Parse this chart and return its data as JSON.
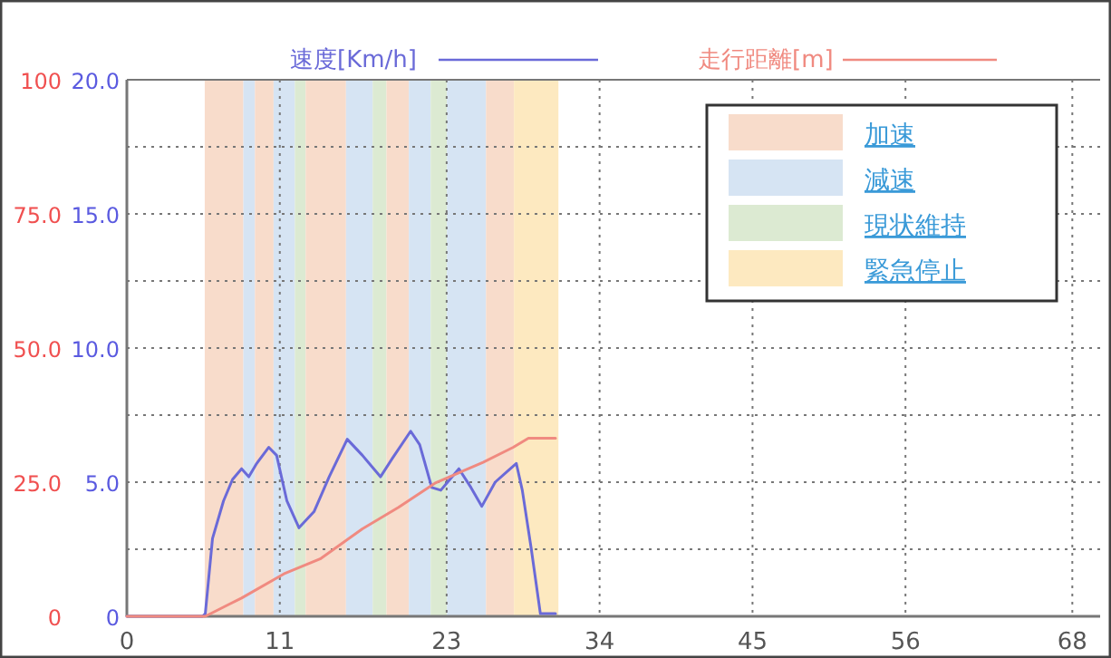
{
  "chart_data": {
    "type": "line",
    "legend": "top",
    "grid": true,
    "line_style": "solid",
    "marker": "none",
    "xlim": [
      0,
      70
    ],
    "xticks": [
      0,
      11,
      23,
      34,
      45,
      56,
      68
    ],
    "ylim": [
      0,
      20
    ],
    "yticks": [
      {
        "value": 0,
        "label": "0"
      },
      {
        "value": 2.5,
        "label": null
      },
      {
        "value": 5,
        "label": "5.0"
      },
      {
        "value": 7.5,
        "label": null
      },
      {
        "value": 10,
        "label": "10.0"
      },
      {
        "value": 12.5,
        "label": null
      },
      {
        "value": 15,
        "label": "15.0"
      },
      {
        "value": 17.5,
        "label": null
      },
      {
        "value": 20,
        "label": "20.0"
      }
    ],
    "y2lim": [
      0,
      100
    ],
    "y2ticks": [
      0,
      {
        "value": 25,
        "label": "25.0"
      },
      {
        "value": 50,
        "label": "50.0"
      },
      {
        "value": 75,
        "label": "75.0"
      },
      100
    ],
    "series": [
      {
        "name": "速度[Km/h]",
        "color": "#6a6ad8",
        "x": [
          0,
          5.43,
          5.64,
          6.16,
          6.95,
          7.6,
          8.25,
          8.77,
          9.34,
          10.2,
          10.77,
          11.51,
          12.38,
          13.46,
          14.55,
          15.85,
          16.94,
          18.24,
          19.11,
          20.41,
          21.06,
          21.93,
          22.58,
          23.23,
          23.88,
          24.75,
          25.53,
          26.49,
          27.36,
          28.01,
          28.44,
          29.09,
          29.74,
          30.83
        ],
        "values": [
          0,
          0,
          0.1,
          2.9,
          4.3,
          5.1,
          5.5,
          5.2,
          5.7,
          6.3,
          6.0,
          4.3,
          3.3,
          3.9,
          5.2,
          6.6,
          6.0,
          5.2,
          5.9,
          6.9,
          6.4,
          4.8,
          4.7,
          5.1,
          5.5,
          4.8,
          4.1,
          5.0,
          5.4,
          5.7,
          4.7,
          2.5,
          0.1,
          0.1
        ]
      },
      {
        "name": "走行距離[m]",
        "color": "#f08a80",
        "axis": "y2",
        "x": [
          0,
          5.64,
          8.25,
          11.29,
          13.9,
          16.94,
          19.54,
          22.15,
          25.62,
          27.79,
          28.88,
          30.83
        ],
        "values": [
          0,
          0,
          3.4,
          7.9,
          10.7,
          16.3,
          20.3,
          24.8,
          28.7,
          31.5,
          33.2,
          33.2
        ]
      }
    ],
    "annotations": [
      "加速",
      "減速",
      "現状維持",
      "緊急停止"
    ],
    "bands": [
      {
        "axis": "x",
        "from": 5.6,
        "to": 8.38,
        "color": "#f8dccb"
      },
      {
        "axis": "x",
        "from": 8.38,
        "to": 9.21,
        "color": "#d6e4f3"
      },
      {
        "axis": "x",
        "from": 9.21,
        "to": 10.55,
        "color": "#f8dccb"
      },
      {
        "axis": "x",
        "from": 10.55,
        "to": 12.08,
        "color": "#d6e4f3"
      },
      {
        "axis": "x",
        "from": 12.08,
        "to": 12.86,
        "color": "#dcead2"
      },
      {
        "axis": "x",
        "from": 12.86,
        "to": 15.76,
        "color": "#f8dccb"
      },
      {
        "axis": "x",
        "from": 15.76,
        "to": 17.68,
        "color": "#d6e4f3"
      },
      {
        "axis": "x",
        "from": 17.68,
        "to": 18.67,
        "color": "#dcead2"
      },
      {
        "axis": "x",
        "from": 18.67,
        "to": 20.28,
        "color": "#f8dccb"
      },
      {
        "axis": "x",
        "from": 20.28,
        "to": 21.85,
        "color": "#d6e4f3"
      },
      {
        "axis": "x",
        "from": 21.85,
        "to": 23.02,
        "color": "#dcead2"
      },
      {
        "axis": "x",
        "from": 23.02,
        "to": 25.83,
        "color": "#d6e4f3"
      },
      {
        "axis": "x",
        "from": 25.83,
        "to": 27.84,
        "color": "#f8dccb"
      },
      {
        "axis": "x",
        "from": 27.84,
        "to": 31.04,
        "color": "#fde9c0"
      }
    ]
  }
}
